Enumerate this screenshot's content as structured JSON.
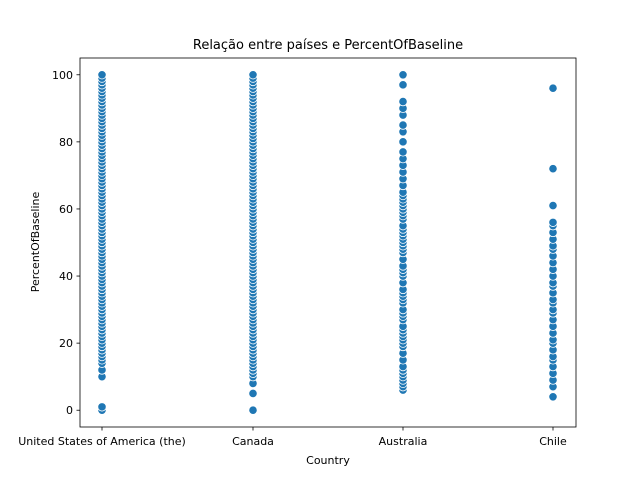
{
  "chart_data": {
    "type": "scatter",
    "title": "Relação entre países e PercentOfBaseline",
    "xlabel": "Country",
    "ylabel": "PercentOfBaseline",
    "categories": [
      "United States of America (the)",
      "Canada",
      "Australia",
      "Chile"
    ],
    "ylim": [
      -5,
      105
    ],
    "yticks": [
      0,
      20,
      40,
      60,
      80,
      100
    ],
    "grid": false,
    "legend": "none",
    "marker_color": "#1f77b4",
    "series": [
      {
        "category": "United States of America (the)",
        "values": [
          0,
          1,
          10,
          12,
          14,
          15,
          16,
          17,
          18,
          19,
          20,
          21,
          22,
          23,
          24,
          25,
          26,
          27,
          28,
          29,
          30,
          31,
          32,
          33,
          34,
          35,
          36,
          37,
          38,
          39,
          40,
          41,
          42,
          43,
          44,
          45,
          46,
          47,
          48,
          49,
          50,
          51,
          52,
          53,
          54,
          55,
          56,
          57,
          58,
          59,
          60,
          61,
          62,
          63,
          64,
          65,
          66,
          67,
          68,
          69,
          70,
          71,
          72,
          73,
          74,
          75,
          76,
          77,
          78,
          79,
          80,
          81,
          82,
          83,
          84,
          85,
          86,
          87,
          88,
          89,
          90,
          91,
          92,
          93,
          94,
          95,
          96,
          97,
          98,
          99,
          100
        ]
      },
      {
        "category": "Canada",
        "values": [
          0,
          5,
          8,
          10,
          11,
          12,
          13,
          14,
          15,
          16,
          17,
          18,
          19,
          20,
          21,
          22,
          23,
          24,
          25,
          26,
          27,
          28,
          29,
          30,
          31,
          32,
          33,
          34,
          35,
          36,
          37,
          38,
          39,
          40,
          41,
          42,
          43,
          44,
          45,
          46,
          47,
          48,
          49,
          50,
          51,
          52,
          53,
          54,
          55,
          56,
          57,
          58,
          59,
          60,
          61,
          62,
          63,
          64,
          65,
          66,
          67,
          68,
          69,
          70,
          71,
          72,
          73,
          74,
          75,
          76,
          77,
          78,
          79,
          80,
          81,
          82,
          83,
          84,
          85,
          86,
          87,
          88,
          89,
          90,
          91,
          92,
          93,
          94,
          95,
          96,
          97,
          98,
          99,
          100
        ]
      },
      {
        "category": "Australia",
        "values": [
          6,
          7,
          8,
          9,
          10,
          11,
          12,
          13,
          15,
          17,
          19,
          20,
          21,
          22,
          23,
          24,
          25,
          27,
          28,
          29,
          30,
          32,
          33,
          34,
          35,
          36,
          38,
          40,
          41,
          42,
          43,
          45,
          47,
          48,
          49,
          50,
          51,
          52,
          53,
          54,
          55,
          57,
          58,
          59,
          60,
          61,
          62,
          63,
          64,
          65,
          67,
          69,
          71,
          73,
          75,
          77,
          80,
          83,
          85,
          88,
          90,
          92,
          97,
          100
        ]
      },
      {
        "category": "Chile",
        "values": [
          4,
          7,
          9,
          11,
          13,
          15,
          16,
          18,
          20,
          21,
          23,
          25,
          27,
          29,
          30,
          32,
          33,
          35,
          37,
          38,
          40,
          42,
          44,
          46,
          48,
          49,
          51,
          53,
          55,
          56,
          61,
          72,
          96
        ]
      }
    ]
  }
}
